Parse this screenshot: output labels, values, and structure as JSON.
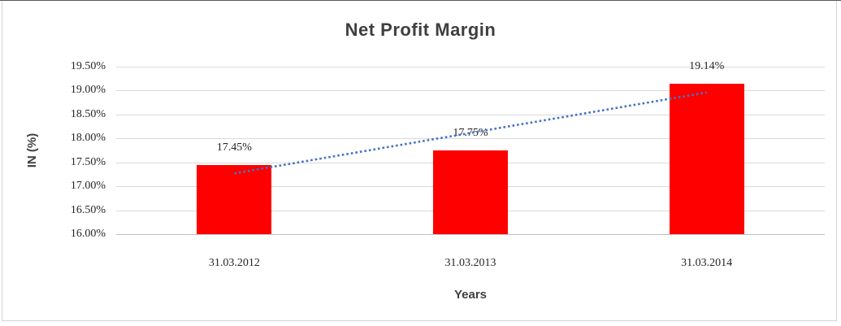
{
  "chart_data": {
    "type": "bar",
    "title": "Net Profit Margin",
    "xlabel": "Years",
    "ylabel": "IN (%)",
    "categories": [
      "31.03.2012",
      "31.03.2013",
      "31.03.2014"
    ],
    "values": [
      17.45,
      17.75,
      19.14
    ],
    "data_labels": [
      "17.45%",
      "17.75%",
      "19.14%"
    ],
    "ylim": [
      16.0,
      19.5
    ],
    "ytick_step": 0.5,
    "yticks": [
      "19.50%",
      "19.00%",
      "18.50%",
      "18.00%",
      "17.50%",
      "17.00%",
      "16.50%",
      "16.00%"
    ],
    "grid": true,
    "legend_shown": false,
    "bar_color": "#ff0000",
    "gridline_color": "#d9d9d9",
    "axisline_color": "#bfbfbf",
    "trendline": {
      "kind": "linear-dotted",
      "color": "#4472c4",
      "start_value": 17.27,
      "end_value": 18.96
    }
  }
}
